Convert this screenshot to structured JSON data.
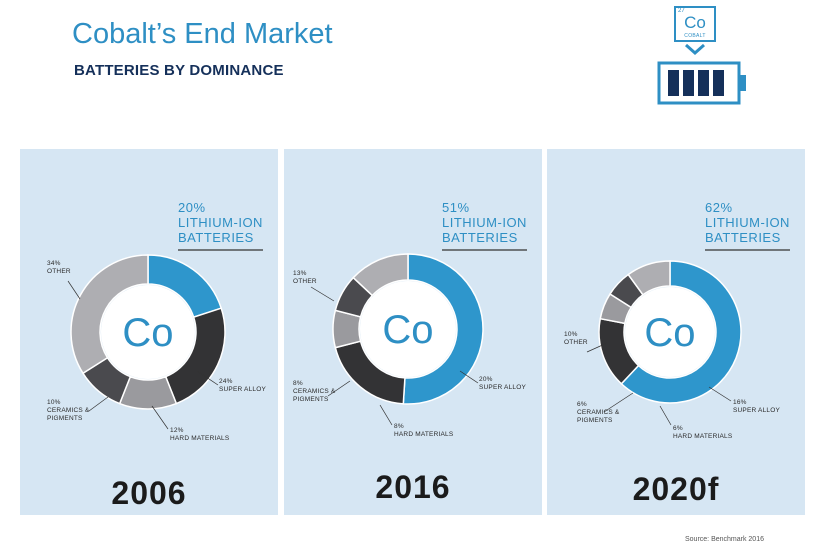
{
  "header": {
    "title": "Cobalt’s End Market",
    "subtitle": "BATTERIES BY DOMINANCE"
  },
  "element_icon": {
    "number": "27",
    "symbol": "Co",
    "name": "COBALT"
  },
  "icons": [
    "cobalt-element-icon",
    "chevron-down-icon",
    "battery-icon"
  ],
  "colors": {
    "lithium_ion": "#2e96cc",
    "super_alloy": "#333335",
    "hard_materials": "#9a9a9e",
    "ceramics_pigments": "#4a4a4e",
    "other": "#aeaeb2",
    "panel_bg": "#d6e6f3",
    "title": "#2e8fc4",
    "subtitle": "#15305a"
  },
  "chart_data": [
    {
      "type": "pie",
      "year": "2006",
      "center_label": "Co",
      "slices": [
        {
          "key": "lithium_ion",
          "value": 20,
          "pct": "20%",
          "label": [
            "LITHIUM-ION",
            "BATTERIES"
          ]
        },
        {
          "key": "super_alloy",
          "value": 24,
          "pct": "24%",
          "label": [
            "SUPER ALLOY"
          ]
        },
        {
          "key": "hard_materials",
          "value": 12,
          "pct": "12%",
          "label": [
            "HARD MATERIALS"
          ]
        },
        {
          "key": "ceramics_pigments",
          "value": 10,
          "pct": "10%",
          "label": [
            "CERAMICS &",
            "PIGMENTS"
          ]
        },
        {
          "key": "other",
          "value": 34,
          "pct": "34%",
          "label": [
            "OTHER"
          ]
        }
      ]
    },
    {
      "type": "pie",
      "year": "2016",
      "center_label": "Co",
      "slices": [
        {
          "key": "lithium_ion",
          "value": 51,
          "pct": "51%",
          "label": [
            "LITHIUM-ION",
            "BATTERIES"
          ]
        },
        {
          "key": "super_alloy",
          "value": 20,
          "pct": "20%",
          "label": [
            "SUPER ALLOY"
          ]
        },
        {
          "key": "hard_materials",
          "value": 8,
          "pct": "8%",
          "label": [
            "HARD MATERIALS"
          ]
        },
        {
          "key": "ceramics_pigments",
          "value": 8,
          "pct": "8%",
          "label": [
            "CERAMICS &",
            "PIGMENTS"
          ]
        },
        {
          "key": "other",
          "value": 13,
          "pct": "13%",
          "label": [
            "OTHER"
          ]
        }
      ]
    },
    {
      "type": "pie",
      "year": "2020f",
      "center_label": "Co",
      "slices": [
        {
          "key": "lithium_ion",
          "value": 62,
          "pct": "62%",
          "label": [
            "LITHIUM-ION",
            "BATTERIES"
          ]
        },
        {
          "key": "super_alloy",
          "value": 16,
          "pct": "16%",
          "label": [
            "SUPER ALLOY"
          ]
        },
        {
          "key": "hard_materials",
          "value": 6,
          "pct": "6%",
          "label": [
            "HARD MATERIALS"
          ]
        },
        {
          "key": "ceramics_pigments",
          "value": 6,
          "pct": "6%",
          "label": [
            "CERAMICS &",
            "PIGMENTS"
          ]
        },
        {
          "key": "other",
          "value": 10,
          "pct": "10%",
          "label": [
            "OTHER"
          ]
        }
      ]
    }
  ],
  "source": "Source: Benchmark 2016"
}
